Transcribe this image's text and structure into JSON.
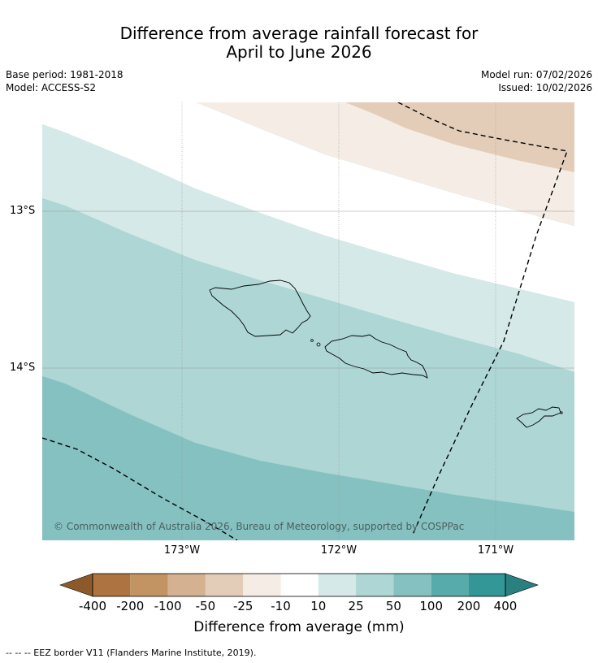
{
  "title_line1": "Difference from average rainfall forecast for",
  "title_line2": "April to June 2026",
  "meta_left": [
    "Base period: 1981-2018",
    "Model: ACCESS-S2"
  ],
  "meta_right": [
    "Model run: 07/02/2026",
    "Issued: 10/02/2026"
  ],
  "lat_labels": [
    "13°S",
    "14°S"
  ],
  "lon_labels": [
    "173°W",
    "172°W",
    "171°W"
  ],
  "copyright": "© Commonwealth of Australia 2026, Bureau of Meteorology, supported by COSPPac",
  "colorbar": {
    "ticks": [
      "-400",
      "-200",
      "-100",
      "-50",
      "-25",
      "-10",
      "10",
      "25",
      "50",
      "100",
      "200",
      "400"
    ],
    "colors": [
      "#8c5a2a",
      "#ad7340",
      "#c29463",
      "#d4b190",
      "#e3cdb8",
      "#f4ece5",
      "#ffffff",
      "#d4e9e8",
      "#add6d5",
      "#84c1c0",
      "#58abab",
      "#339797",
      "#2a7f7f"
    ],
    "label": "Difference from average (mm)"
  },
  "eez_note": "--  --  -- EEZ border V11 (Flanders Marine Institute, 2019).",
  "map_bands": {
    "dry_25_50": "#e3cdb8",
    "dry_10_25": "#f4ece5",
    "wet_10_25": "#d4e9e8",
    "wet_25_50": "#add6d5",
    "wet_50_100": "#84c1c0"
  }
}
